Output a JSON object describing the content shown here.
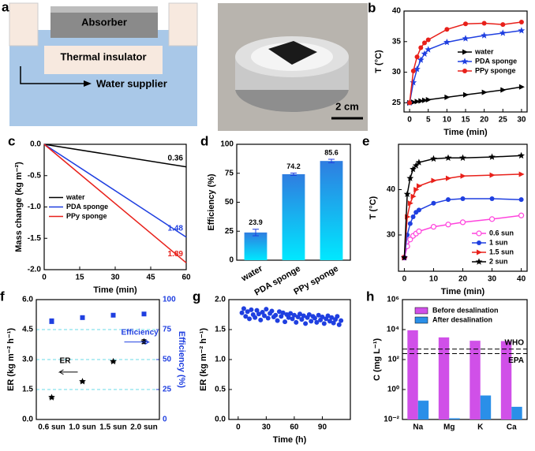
{
  "panel_a": {
    "label": "a",
    "absorber": "Absorber",
    "insulator": "Thermal insulator",
    "supplier": "Water supplier",
    "scale_bar": "2 cm"
  },
  "chart_data": [
    {
      "label": "b",
      "type": "line",
      "xlabel": "Time (min)",
      "ylabel": "T (°C)",
      "x": [
        0,
        1,
        2,
        3,
        4,
        5,
        10,
        15,
        20,
        25,
        30
      ],
      "xlim": [
        -1.5,
        31.5
      ],
      "xticks": [
        0,
        5,
        10,
        15,
        20,
        25,
        30
      ],
      "ylim": [
        23.5,
        40
      ],
      "yticks": [
        25,
        30,
        35,
        40
      ],
      "legend": "center right",
      "series": [
        {
          "name": "water",
          "color": "#000000",
          "marker": "triangle",
          "values": [
            25,
            25.1,
            25.2,
            25.3,
            25.4,
            25.5,
            25.9,
            26.3,
            26.7,
            27.1,
            27.6
          ]
        },
        {
          "name": "PDA sponge",
          "color": "#1f3fe0",
          "marker": "star",
          "values": [
            25,
            28.3,
            30.5,
            32,
            33,
            33.7,
            34.9,
            35.5,
            36,
            36.4,
            36.8
          ]
        },
        {
          "name": "PPy sponge",
          "color": "#e8201a",
          "marker": "circle",
          "values": [
            25,
            30.2,
            32.5,
            34,
            34.8,
            35.3,
            37,
            37.9,
            38,
            37.8,
            38.2
          ]
        }
      ]
    },
    {
      "label": "c",
      "type": "line",
      "xlabel": "Time (min)",
      "ylabel": "Mass change (kg m⁻²)",
      "x": [
        0,
        60
      ],
      "xlim": [
        0,
        60
      ],
      "xticks": [
        0,
        15,
        30,
        45,
        60
      ],
      "ylim": [
        -2,
        0
      ],
      "yticks": [
        {
          "value": 0,
          "label": "0.0"
        },
        {
          "value": -0.5,
          "label": "-0.5"
        },
        {
          "value": -1,
          "label": "-1.0"
        },
        {
          "value": -1.5,
          "label": "-1.5"
        },
        {
          "value": -2,
          "label": "-2.0"
        }
      ],
      "legend": "center left",
      "series": [
        {
          "name": "water",
          "color": "#000000",
          "values": [
            0,
            -0.36
          ],
          "value_labels": [
            null,
            "0.36"
          ]
        },
        {
          "name": "PDA sponge",
          "color": "#1f3fe0",
          "values": [
            0,
            -1.48
          ],
          "value_labels": [
            null,
            "1.48"
          ]
        },
        {
          "name": "PPy sponge",
          "color": "#e8201a",
          "values": [
            0,
            -1.89
          ],
          "value_labels": [
            null,
            "1.89"
          ]
        }
      ]
    },
    {
      "label": "d",
      "type": "bar",
      "ylabel": "Efficiency (%)",
      "categories": [
        "water",
        "PDA sponge",
        "PPy sponge"
      ],
      "values": [
        23.9,
        74.2,
        85.6
      ],
      "errors": [
        2.8,
        1,
        1.5
      ],
      "color": "#00e8ff",
      "color_top": "#2f7de0",
      "xtick_rotation": -30,
      "ylim": [
        0,
        100
      ],
      "yticks": [
        0,
        25,
        50,
        75,
        100
      ]
    },
    {
      "label": "e",
      "type": "line",
      "xlabel": "Time (min)",
      "ylabel": "T (°C)",
      "x": [
        0,
        1,
        2,
        3,
        4,
        5,
        10,
        15,
        20,
        30,
        40
      ],
      "xlim": [
        -2,
        42
      ],
      "xticks": [
        0,
        10,
        20,
        30,
        40
      ],
      "ylim": [
        22,
        50
      ],
      "yticks": [
        30,
        40
      ],
      "legend": "lower right",
      "series": [
        {
          "name": "0.6 sun",
          "color": "#ff44dd",
          "marker": "open-circle",
          "values": [
            25,
            27.5,
            29,
            29.8,
            30.3,
            30.8,
            31.8,
            32.3,
            32.8,
            33.5,
            34.3
          ]
        },
        {
          "name": "1 sun",
          "color": "#1f3fe0",
          "marker": "circle",
          "values": [
            25,
            30,
            32.5,
            34,
            35,
            35.5,
            37,
            37.8,
            38,
            38,
            37.8
          ]
        },
        {
          "name": "1.5 sun",
          "color": "#e8201a",
          "marker": "triangle",
          "values": [
            25,
            34,
            37,
            38.5,
            40,
            40.8,
            42,
            42.5,
            43,
            43.2,
            43.4
          ]
        },
        {
          "name": "2 sun",
          "color": "#000000",
          "marker": "star",
          "values": [
            25,
            39,
            42.5,
            44.5,
            45.3,
            46,
            46.8,
            47,
            47,
            47.2,
            47.5
          ]
        }
      ]
    },
    {
      "label": "f",
      "type": "scatter",
      "ylabel": "ER (kg m⁻² h⁻¹)",
      "y2label": "Efficiency (%)",
      "y2color": "#1f3fe0",
      "grid": true,
      "categories": [
        "0.6 sun",
        "1.0 sun",
        "1.5 sun",
        "2.0 sun"
      ],
      "ylim": [
        0,
        6
      ],
      "yticks": [
        {
          "value": 0,
          "label": "0.0"
        },
        {
          "value": 1.5,
          "label": "1.5"
        },
        {
          "value": 3,
          "label": "3.0"
        },
        {
          "value": 4.5,
          "label": "4.5"
        },
        {
          "value": 6,
          "label": "6.0"
        }
      ],
      "y2lim": [
        0,
        100
      ],
      "y2ticks": [
        0,
        25,
        50,
        75,
        100
      ],
      "annotations": [
        "ER",
        "Efficiency"
      ],
      "series": [
        {
          "name": "ER",
          "color": "#000000",
          "marker": "star",
          "values": [
            1.1,
            1.9,
            2.9,
            3.9
          ],
          "errors": [
            0.06,
            0.05,
            0.05,
            0.1
          ]
        },
        {
          "name": "Efficiency",
          "color": "#1f3fe0",
          "marker": "square",
          "axis": "y2",
          "values": [
            82,
            85,
            87,
            88
          ],
          "errors": [
            2,
            1.5,
            1,
            1.5
          ]
        }
      ]
    },
    {
      "label": "g",
      "type": "scatter",
      "xlabel": "Time (h)",
      "ylabel": "ER (kg m⁻² h⁻¹)",
      "x": [
        4,
        6,
        8,
        10,
        12,
        14,
        16,
        18,
        20,
        22,
        24,
        26,
        28,
        30,
        32,
        34,
        36,
        38,
        40,
        42,
        44,
        46,
        48,
        50,
        52,
        54,
        56,
        58,
        60,
        62,
        64,
        66,
        68,
        70,
        72,
        74,
        76,
        78,
        80,
        82,
        84,
        86,
        88,
        90,
        92,
        94,
        96,
        98,
        100,
        102,
        104,
        106,
        108,
        110
      ],
      "xlim": [
        -10,
        120
      ],
      "xticks": [
        0,
        30,
        60,
        90
      ],
      "ylim": [
        0,
        2
      ],
      "yticks": [
        {
          "value": 0,
          "label": "0.0"
        },
        {
          "value": 0.5,
          "label": "0.5"
        },
        {
          "value": 1,
          "label": "1.0"
        },
        {
          "value": 1.5,
          "label": "1.5"
        },
        {
          "value": 2,
          "label": "2.0"
        }
      ],
      "series": [
        {
          "name": "ER",
          "color": "#1f3fe0",
          "marker": "circle",
          "values": [
            1.78,
            1.85,
            1.72,
            1.8,
            1.68,
            1.83,
            1.75,
            1.7,
            1.82,
            1.76,
            1.66,
            1.79,
            1.73,
            1.84,
            1.69,
            1.77,
            1.81,
            1.71,
            1.74,
            1.65,
            1.8,
            1.72,
            1.78,
            1.63,
            1.75,
            1.7,
            1.77,
            1.68,
            1.74,
            1.62,
            1.71,
            1.76,
            1.67,
            1.73,
            1.6,
            1.7,
            1.75,
            1.64,
            1.72,
            1.69,
            1.62,
            1.74,
            1.66,
            1.71,
            1.6,
            1.68,
            1.73,
            1.64,
            1.7,
            1.61,
            1.67,
            1.72,
            1.58,
            1.65
          ]
        }
      ]
    },
    {
      "label": "h",
      "type": "bar",
      "ylabel": "C (mg L⁻¹)",
      "yscale": "log",
      "categories": [
        "Na",
        "Mg",
        "K",
        "Ca"
      ],
      "ylim": [
        0.01,
        1000000
      ],
      "yticks": [
        {
          "value": 0.01,
          "label": "10⁻²"
        },
        {
          "value": 1,
          "label": "10⁰"
        },
        {
          "value": 100,
          "label": "10²"
        },
        {
          "value": 10000,
          "label": "10⁴"
        },
        {
          "value": 1000000,
          "label": "10⁶"
        }
      ],
      "legend": "upper right",
      "reference_lines": [
        {
          "label": "WHO",
          "value": 500
        },
        {
          "label": "EPA",
          "value": 250
        }
      ],
      "series": [
        {
          "name": "Before desalination",
          "color": "#d050e8",
          "values": [
            9000,
            3000,
            1800,
            1700
          ]
        },
        {
          "name": "After desalination",
          "color": "#2a8fe8",
          "values": [
            0.18,
            0.012,
            0.4,
            0.07
          ]
        }
      ]
    }
  ]
}
